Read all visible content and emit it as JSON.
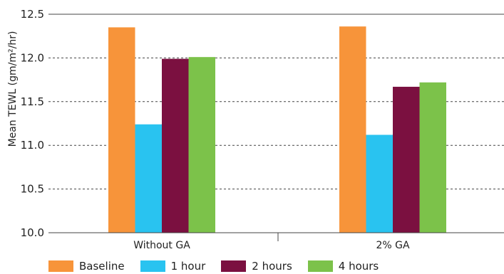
{
  "chart_data": {
    "type": "bar",
    "title": "",
    "xlabel": "",
    "ylabel": "Mean TEWL (gm/m²/hr)",
    "ylim": [
      10.0,
      12.5
    ],
    "yticks": [
      "10.0",
      "10.5",
      "11.0",
      "11.5",
      "12.0",
      "12.5"
    ],
    "grid": "horizontal dashed",
    "legend_position": "bottom",
    "categories": [
      "Without GA",
      "2% GA"
    ],
    "series": [
      {
        "name": "Baseline",
        "color": "#f7943a",
        "values": [
          12.35,
          12.36
        ]
      },
      {
        "name": "1 hour",
        "color": "#29c3f0",
        "values": [
          11.24,
          11.12
        ]
      },
      {
        "name": "2 hours",
        "color": "#7b1040",
        "values": [
          11.99,
          11.67
        ]
      },
      {
        "name": "4 hours",
        "color": "#7cc24a",
        "values": [
          12.01,
          11.72
        ]
      }
    ]
  }
}
